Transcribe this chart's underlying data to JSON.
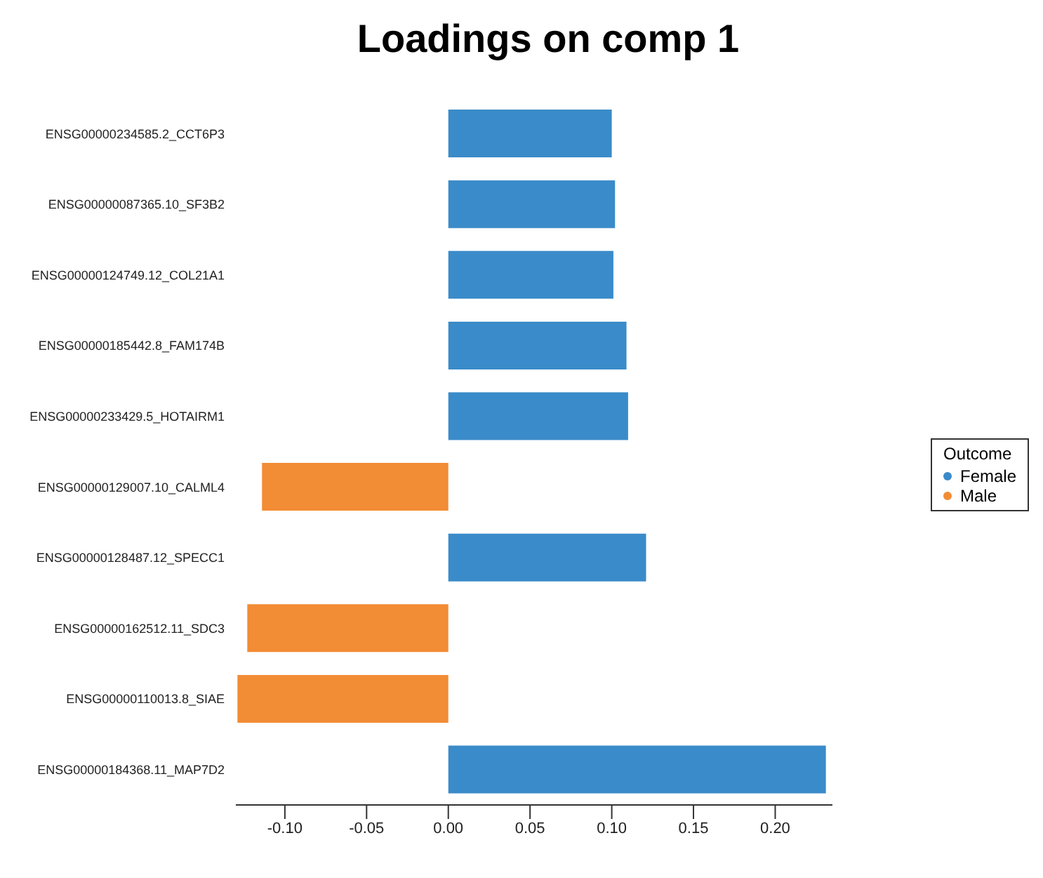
{
  "chart_data": {
    "type": "bar",
    "title": "Loadings on comp 1",
    "orientation": "horizontal",
    "stacked": true,
    "legend_title": "Outcome",
    "legend": "right",
    "categories": [
      "ENSG00000234585.2_CCT6P3",
      "ENSG00000087365.10_SF3B2",
      "ENSG00000124749.12_COL21A1",
      "ENSG00000185442.8_FAM174B",
      "ENSG00000233429.5_HOTAIRM1",
      "ENSG00000129007.10_CALML4",
      "ENSG00000128487.12_SPECC1",
      "ENSG00000162512.11_SDC3",
      "ENSG00000110013.8_SIAE",
      "ENSG00000184368.11_MAP7D2"
    ],
    "series": [
      {
        "name": "Female",
        "color": "#3a8bc9",
        "values": [
          0.1,
          0.102,
          0.101,
          0.109,
          0.11,
          null,
          0.121,
          null,
          null,
          0.231
        ]
      },
      {
        "name": "Male",
        "color": "#f28c35",
        "values": [
          null,
          null,
          null,
          null,
          null,
          -0.114,
          null,
          -0.123,
          -0.129,
          null
        ]
      }
    ],
    "xlim": [
      -0.13,
      0.235
    ],
    "xticks": [
      {
        "value": -0.1,
        "label": "-0.10"
      },
      {
        "value": -0.05,
        "label": "-0.05"
      },
      {
        "value": 0,
        "label": "0.00"
      },
      {
        "value": 0.05,
        "label": "0.05"
      },
      {
        "value": 0.1,
        "label": "0.10"
      },
      {
        "value": 0.15,
        "label": "0.15"
      },
      {
        "value": 0.2,
        "label": "0.20"
      }
    ]
  }
}
